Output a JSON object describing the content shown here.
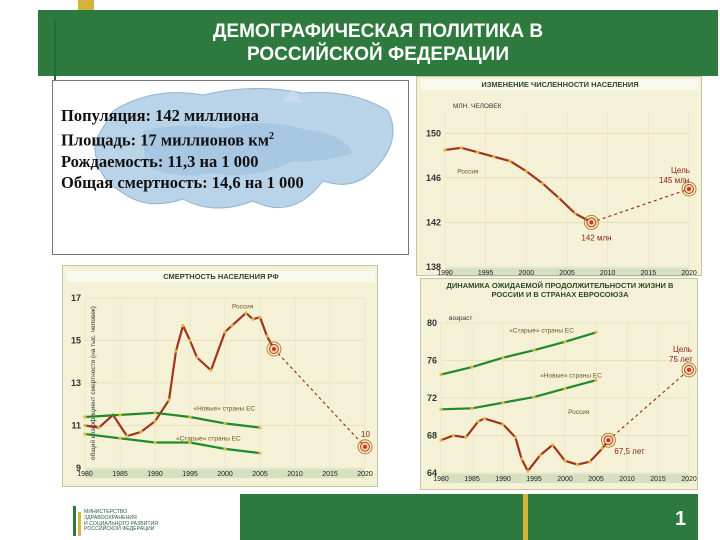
{
  "header": {
    "title_line1": "ДЕМОГРАФИЧЕСКАЯ ПОЛИТИКА В",
    "title_line2": "РОССИЙСКОЙ ФЕДЕРАЦИИ"
  },
  "stats": {
    "population": "Популяция: 142 миллиона",
    "area": "Площадь: 17 миллионов км",
    "area_sup": "2",
    "birth_rate": "Рождаемость: 11,3 на 1 000",
    "mortality": "Общая смертность: 14,6 на 1 000"
  },
  "footer": {
    "page_number": "1",
    "logo_text": "МИНИСТЕРСТВО ЗДРАВООХРАНЕНИЯ И СОЦИАЛЬНОГО РАЗВИТИЯ РОССИЙСКОЙ ФЕДЕРАЦИИ"
  },
  "colors": {
    "header_green": "#2e7a3e",
    "gold": "#d3b43c",
    "russia_line": "#a0341e",
    "eu_line": "#1e8a2a"
  },
  "chart_data": [
    {
      "type": "line",
      "title": "ИЗМЕНЕНИЕ ЧИСЛЕННОСТИ НАСЕЛЕНИЯ",
      "ylabel": "МЛН. ЧЕЛОВЕК",
      "ylim": [
        138,
        152
      ],
      "yticks": [
        "150",
        "146",
        "142",
        "138"
      ],
      "xticks": [
        "1990",
        "1995",
        "2000",
        "2005",
        "2010",
        "2015",
        "2020"
      ],
      "series": [
        {
          "name": "Россия",
          "x": [
            1990,
            1992,
            1994,
            1996,
            1998,
            2000,
            2002,
            2004,
            2006,
            2008
          ],
          "y": [
            148.5,
            148.7,
            148.3,
            147.9,
            147.5,
            146.6,
            145.5,
            144.2,
            142.8,
            142.0
          ]
        }
      ],
      "annotations": {
        "current": "142 млн",
        "goal_label": "Цель",
        "goal_value": "145 млн",
        "goal_x": 2020,
        "goal_y": 145
      }
    },
    {
      "type": "line",
      "title": "СМЕРТНОСТЬ НАСЕЛЕНИЯ РФ",
      "ylabel": "общий коэффициент смертности (на тыс. человек)",
      "ylim": [
        9,
        17
      ],
      "yticks": [
        "17",
        "15",
        "13",
        "11",
        "9"
      ],
      "xticks": [
        "1980",
        "1985",
        "1990",
        "1995",
        "2000",
        "2005",
        "2010",
        "2015",
        "2020"
      ],
      "series": [
        {
          "name": "Россия",
          "x": [
            1980,
            1982,
            1984,
            1986,
            1988,
            1990,
            1992,
            1993,
            1994,
            1995,
            1996,
            1998,
            2000,
            2001,
            2003,
            2004,
            2005,
            2006,
            2007
          ],
          "y": [
            11.0,
            10.9,
            11.5,
            10.5,
            10.7,
            11.2,
            12.2,
            14.5,
            15.7,
            15.0,
            14.2,
            13.6,
            15.4,
            15.7,
            16.3,
            16.0,
            16.1,
            15.2,
            14.6
          ]
        },
        {
          "name": "«Новые» страны ЕС",
          "x": [
            1980,
            1985,
            1990,
            1995,
            2000,
            2005
          ],
          "y": [
            11.4,
            11.5,
            11.6,
            11.4,
            11.1,
            10.9
          ]
        },
        {
          "name": "«Старые» страны ЕС",
          "x": [
            1980,
            1985,
            1990,
            1995,
            2000,
            2005
          ],
          "y": [
            10.6,
            10.4,
            10.2,
            10.2,
            9.9,
            9.7
          ]
        }
      ],
      "annotations": {
        "goal_value": "10",
        "goal_x": 2020,
        "goal_y": 10
      }
    },
    {
      "type": "line",
      "title": "ДИНАМИКА ОЖИДАЕМОЙ ПРОДОЛЖИТЕЛЬНОСТИ ЖИЗНИ В РОССИИ И В СТРАНАХ ЕВРОСОЮЗА",
      "ylabel": "возраст",
      "ylim": [
        64,
        80
      ],
      "yticks": [
        "80",
        "76",
        "72",
        "68",
        "64"
      ],
      "xticks": [
        "1980",
        "1985",
        "1990",
        "1995",
        "2000",
        "2005",
        "2010",
        "2015",
        "2020"
      ],
      "series": [
        {
          "name": "«Старые» страны ЕС",
          "x": [
            1980,
            1985,
            1990,
            1995,
            2000,
            2005
          ],
          "y": [
            74.5,
            75.3,
            76.3,
            77.1,
            78.0,
            79.0
          ]
        },
        {
          "name": "«Новые» страны ЕС",
          "x": [
            1980,
            1985,
            1990,
            1995,
            2000,
            2005
          ],
          "y": [
            70.8,
            70.9,
            71.5,
            72.1,
            73.0,
            73.9
          ]
        },
        {
          "name": "Россия",
          "x": [
            1980,
            1982,
            1984,
            1986,
            1987,
            1990,
            1992,
            1993,
            1994,
            1996,
            1998,
            2000,
            2002,
            2004,
            2006,
            2007
          ],
          "y": [
            67.5,
            68.0,
            67.8,
            69.5,
            69.8,
            69.2,
            67.8,
            65.5,
            64.2,
            65.9,
            67.0,
            65.3,
            64.9,
            65.2,
            66.6,
            67.5
          ]
        }
      ],
      "annotations": {
        "goal_label": "Цель",
        "goal_value": "75 лет",
        "current": "67,5 лет",
        "goal_x": 2020,
        "goal_y": 75
      }
    }
  ]
}
